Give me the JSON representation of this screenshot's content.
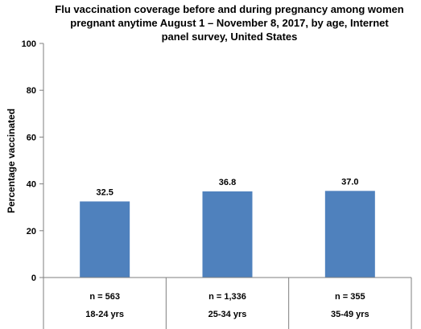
{
  "chart_data": {
    "type": "bar",
    "title_lines": [
      "Flu vaccination coverage before and during pregnancy among women",
      "pregnant anytime August 1 – November 8, 2017, by age, Internet",
      "panel survey, United States"
    ],
    "ylabel": "Percentage vaccinated",
    "xlabel": "",
    "ylim": [
      0,
      100
    ],
    "yticks": [
      0,
      20,
      40,
      60,
      80,
      100
    ],
    "categories": [
      "18-24 yrs",
      "25-34 yrs",
      "35-49  yrs"
    ],
    "sample_sizes": [
      "n = 563",
      "n = 1,336",
      "n = 355"
    ],
    "values": [
      32.5,
      36.8,
      37.0
    ],
    "data_labels": [
      "32.5",
      "36.8",
      "37.0"
    ],
    "bar_color": "#4f81bd",
    "grid": false,
    "legend": "none"
  }
}
